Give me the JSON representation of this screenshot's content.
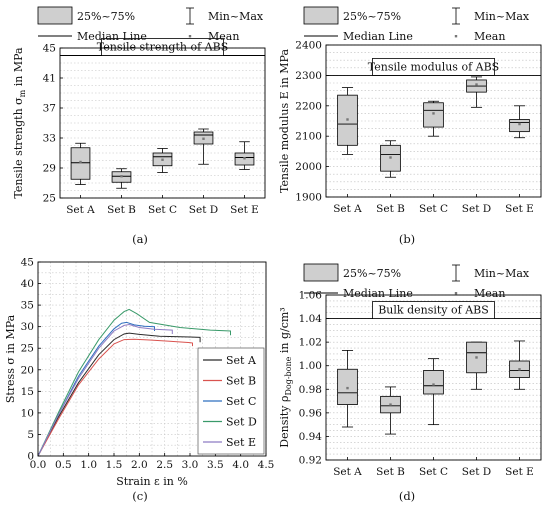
{
  "chart_data": [
    {
      "type": "box",
      "panel": "(a)",
      "title": "Tensile strength of ABS",
      "ylabel": "Tensile strength σ_m in MPa",
      "ylim": [
        25,
        45
      ],
      "yticks": [
        25,
        29,
        33,
        37,
        41,
        45
      ],
      "title_line": 44,
      "categories": [
        "Set A",
        "Set B",
        "Set C",
        "Set D",
        "Set E"
      ],
      "legend": {
        "box": "25%~75%",
        "whisker": "Min~Max",
        "median": "Median Line",
        "mean": "Mean"
      },
      "boxes": [
        {
          "min": 26.8,
          "q1": 27.5,
          "median": 29.7,
          "q3": 31.7,
          "max": 32.3,
          "mean": 29.8
        },
        {
          "min": 26.3,
          "q1": 27.1,
          "median": 27.9,
          "q3": 28.5,
          "max": 28.9,
          "mean": 27.9
        },
        {
          "min": 28.4,
          "q1": 29.3,
          "median": 30.5,
          "q3": 31.0,
          "max": 31.6,
          "mean": 30.1
        },
        {
          "min": 29.5,
          "q1": 32.2,
          "median": 33.4,
          "q3": 33.8,
          "max": 34.2,
          "mean": 32.9
        },
        {
          "min": 28.8,
          "q1": 29.4,
          "median": 30.4,
          "q3": 31.0,
          "max": 32.5,
          "mean": 30.3
        }
      ]
    },
    {
      "type": "box",
      "panel": "(b)",
      "title": "Tensile modulus of ABS",
      "ylabel": "Tensile modulus E in MPa",
      "ylim": [
        1900,
        2400
      ],
      "yticks": [
        1900,
        2000,
        2100,
        2200,
        2300,
        2400
      ],
      "title_line": 2300,
      "categories": [
        "Set A",
        "Set B",
        "Set C",
        "Set D",
        "Set E"
      ],
      "legend": {
        "box": "25%~75%",
        "whisker": "Min~Max",
        "median": "Median Line",
        "mean": "Mean"
      },
      "boxes": [
        {
          "min": 2040,
          "q1": 2070,
          "median": 2140,
          "q3": 2235,
          "max": 2260,
          "mean": 2155
        },
        {
          "min": 1965,
          "q1": 1985,
          "median": 2040,
          "q3": 2070,
          "max": 2085,
          "mean": 2030
        },
        {
          "min": 2100,
          "q1": 2130,
          "median": 2185,
          "q3": 2210,
          "max": 2215,
          "mean": 2175
        },
        {
          "min": 2195,
          "q1": 2245,
          "median": 2265,
          "q3": 2285,
          "max": 2295,
          "mean": 2270
        },
        {
          "min": 2095,
          "q1": 2115,
          "median": 2145,
          "q3": 2155,
          "max": 2200,
          "mean": 2140
        }
      ]
    },
    {
      "type": "line",
      "panel": "(c)",
      "xlabel": "Strain ε in %",
      "ylabel": "Stress σ in MPa",
      "xlim": [
        0,
        4.5
      ],
      "ylim": [
        0,
        45
      ],
      "xticks": [
        0.0,
        0.5,
        1.0,
        1.5,
        2.0,
        2.5,
        3.0,
        3.5,
        4.0,
        4.5
      ],
      "yticks": [
        0,
        5,
        10,
        15,
        20,
        25,
        30,
        35,
        40,
        45
      ],
      "series": [
        {
          "name": "Set A",
          "color": "#2b2b2b",
          "points": [
            [
              0,
              0
            ],
            [
              0.4,
              9
            ],
            [
              0.8,
              17
            ],
            [
              1.2,
              23.5
            ],
            [
              1.5,
              27
            ],
            [
              1.7,
              28.3
            ],
            [
              1.8,
              28.5
            ],
            [
              2.0,
              28.2
            ],
            [
              2.4,
              27.8
            ],
            [
              3.0,
              27.6
            ],
            [
              3.2,
              27.5
            ],
            [
              3.2,
              26.4
            ]
          ]
        },
        {
          "name": "Set B",
          "color": "#d9534f",
          "points": [
            [
              0,
              0
            ],
            [
              0.4,
              8.5
            ],
            [
              0.8,
              16.5
            ],
            [
              1.2,
              22.5
            ],
            [
              1.5,
              26
            ],
            [
              1.7,
              27
            ],
            [
              1.9,
              27.1
            ],
            [
              2.2,
              26.9
            ],
            [
              2.6,
              26.6
            ],
            [
              3.0,
              26.3
            ],
            [
              3.05,
              26.2
            ],
            [
              3.05,
              25.5
            ]
          ]
        },
        {
          "name": "Set C",
          "color": "#2f6fbf",
          "points": [
            [
              0,
              0
            ],
            [
              0.4,
              9.5
            ],
            [
              0.8,
              18.5
            ],
            [
              1.2,
              25.5
            ],
            [
              1.5,
              29.5
            ],
            [
              1.65,
              30.8
            ],
            [
              1.75,
              31
            ],
            [
              1.9,
              30.4
            ],
            [
              2.1,
              30.1
            ],
            [
              2.3,
              30
            ],
            [
              2.3,
              29
            ]
          ]
        },
        {
          "name": "Set D",
          "color": "#3a9a6a",
          "points": [
            [
              0,
              0
            ],
            [
              0.4,
              10
            ],
            [
              0.8,
              19.5
            ],
            [
              1.2,
              27
            ],
            [
              1.5,
              31.5
            ],
            [
              1.7,
              33.5
            ],
            [
              1.8,
              34
            ],
            [
              1.95,
              33
            ],
            [
              2.2,
              31
            ],
            [
              2.8,
              29.8
            ],
            [
              3.4,
              29.2
            ],
            [
              3.8,
              29
            ],
            [
              3.8,
              28
            ]
          ]
        },
        {
          "name": "Set E",
          "color": "#8e7cc3",
          "points": [
            [
              0,
              0
            ],
            [
              0.4,
              9.5
            ],
            [
              0.8,
              18
            ],
            [
              1.2,
              25
            ],
            [
              1.5,
              29
            ],
            [
              1.7,
              30.3
            ],
            [
              1.8,
              30.5
            ],
            [
              2.0,
              29.8
            ],
            [
              2.3,
              29.4
            ],
            [
              2.65,
              29.2
            ],
            [
              2.65,
              28.3
            ]
          ]
        }
      ]
    },
    {
      "type": "box",
      "panel": "(d)",
      "title": "Bulk density of ABS",
      "ylabel": "Density ρ_Dog-bone in g/cm³",
      "ylim": [
        0.92,
        1.06
      ],
      "yticks": [
        0.92,
        0.94,
        0.96,
        0.98,
        1.0,
        1.02,
        1.04,
        1.06
      ],
      "title_line": 1.04,
      "categories": [
        "Set A",
        "Set B",
        "Set C",
        "Set D",
        "Set E"
      ],
      "legend": {
        "box": "25%~75%",
        "whisker": "Min~Max",
        "median": "Median Line",
        "mean": "Mean"
      },
      "boxes": [
        {
          "min": 0.948,
          "q1": 0.967,
          "median": 0.977,
          "q3": 0.997,
          "max": 1.013,
          "mean": 0.981
        },
        {
          "min": 0.942,
          "q1": 0.96,
          "median": 0.966,
          "q3": 0.974,
          "max": 0.982,
          "mean": 0.967
        },
        {
          "min": 0.95,
          "q1": 0.976,
          "median": 0.983,
          "q3": 0.996,
          "max": 1.006,
          "mean": 0.984
        },
        {
          "min": 0.98,
          "q1": 0.994,
          "median": 1.011,
          "q3": 1.02,
          "max": 1.02,
          "mean": 1.007
        },
        {
          "min": 0.98,
          "q1": 0.99,
          "median": 0.996,
          "q3": 1.004,
          "max": 1.021,
          "mean": 0.997
        }
      ]
    }
  ]
}
